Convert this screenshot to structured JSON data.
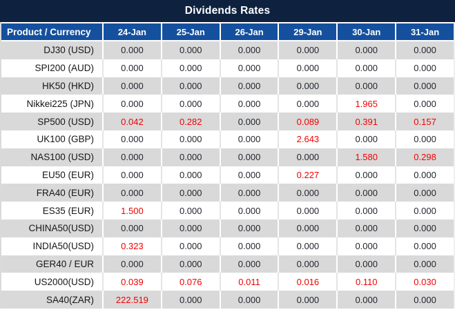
{
  "title": "Dividends Rates",
  "colors": {
    "title_bg": "#0E2240",
    "header_bg": "#14509E",
    "stripe_gray": "#D9D9D9",
    "value_red": "#F20000",
    "text_dark": "#1F232B",
    "sep_light": "#E4E4E4"
  },
  "table": {
    "product_header": "Product / Currency",
    "date_headers": [
      "24-Jan",
      "25-Jan",
      "26-Jan",
      "29-Jan",
      "30-Jan",
      "31-Jan"
    ],
    "rows": [
      {
        "product": "DJ30 (USD)",
        "values": [
          "0.000",
          "0.000",
          "0.000",
          "0.000",
          "0.000",
          "0.000"
        ]
      },
      {
        "product": "SPI200 (AUD)",
        "values": [
          "0.000",
          "0.000",
          "0.000",
          "0.000",
          "0.000",
          "0.000"
        ]
      },
      {
        "product": "HK50 (HKD)",
        "values": [
          "0.000",
          "0.000",
          "0.000",
          "0.000",
          "0.000",
          "0.000"
        ]
      },
      {
        "product": "Nikkei225 (JPN)",
        "values": [
          "0.000",
          "0.000",
          "0.000",
          "0.000",
          "1.965",
          "0.000"
        ]
      },
      {
        "product": "SP500 (USD)",
        "values": [
          "0.042",
          "0.282",
          "0.000",
          "0.089",
          "0.391",
          "0.157"
        ]
      },
      {
        "product": "UK100 (GBP)",
        "values": [
          "0.000",
          "0.000",
          "0.000",
          "2.643",
          "0.000",
          "0.000"
        ]
      },
      {
        "product": "NAS100 (USD)",
        "values": [
          "0.000",
          "0.000",
          "0.000",
          "0.000",
          "1.580",
          "0.298"
        ]
      },
      {
        "product": "EU50 (EUR)",
        "values": [
          "0.000",
          "0.000",
          "0.000",
          "0.227",
          "0.000",
          "0.000"
        ]
      },
      {
        "product": "FRA40 (EUR)",
        "values": [
          "0.000",
          "0.000",
          "0.000",
          "0.000",
          "0.000",
          "0.000"
        ]
      },
      {
        "product": "ES35 (EUR)",
        "values": [
          "1.500",
          "0.000",
          "0.000",
          "0.000",
          "0.000",
          "0.000"
        ]
      },
      {
        "product": "CHINA50(USD)",
        "values": [
          "0.000",
          "0.000",
          "0.000",
          "0.000",
          "0.000",
          "0.000"
        ]
      },
      {
        "product": "INDIA50(USD)",
        "values": [
          "0.323",
          "0.000",
          "0.000",
          "0.000",
          "0.000",
          "0.000"
        ]
      },
      {
        "product": "GER40 / EUR",
        "values": [
          "0.000",
          "0.000",
          "0.000",
          "0.000",
          "0.000",
          "0.000"
        ]
      },
      {
        "product": "US2000(USD)",
        "values": [
          "0.039",
          "0.076",
          "0.011",
          "0.016",
          "0.110",
          "0.030"
        ]
      },
      {
        "product": "SA40(ZAR)",
        "values": [
          "222.519",
          "0.000",
          "0.000",
          "0.000",
          "0.000",
          "0.000"
        ]
      }
    ]
  }
}
